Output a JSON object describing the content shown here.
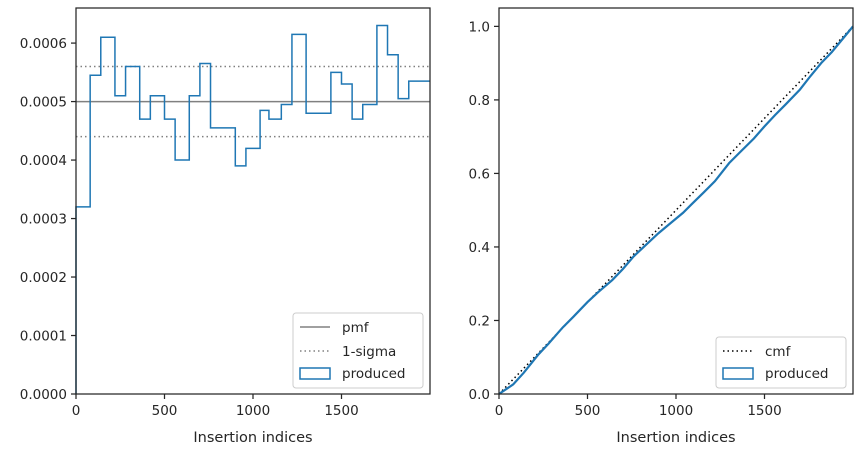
{
  "chart_data": [
    {
      "type": "step",
      "xlabel": "Insertion indices",
      "ylabel": "",
      "xlim": [
        0,
        2000
      ],
      "ylim": [
        0,
        0.00066
      ],
      "xticks": [
        0,
        500,
        1000,
        1500
      ],
      "xtick_labels": [
        "0",
        "500",
        "1000",
        "1500"
      ],
      "yticks": [
        0,
        0.0001,
        0.0002,
        0.0003,
        0.0004,
        0.0005,
        0.0006
      ],
      "ytick_labels": [
        "0.0000",
        "0.0001",
        "0.0002",
        "0.0003",
        "0.0004",
        "0.0005",
        "0.0006"
      ],
      "legend_position": "lower-right",
      "reference_lines": [
        {
          "name": "pmf",
          "y": 0.0005,
          "style": "solid",
          "color": "#808080"
        },
        {
          "name": "1-sigma",
          "y": 0.00056,
          "style": "dotted",
          "color": "#808080"
        },
        {
          "name": "",
          "y": 0.00044,
          "style": "dotted",
          "color": "#808080"
        }
      ],
      "series": [
        {
          "name": "produced",
          "color": "#1f77b4",
          "bin_edges": [
            0,
            80,
            140,
            220,
            280,
            360,
            420,
            500,
            560,
            640,
            700,
            760,
            820,
            900,
            960,
            1040,
            1090,
            1160,
            1220,
            1300,
            1360,
            1440,
            1500,
            1560,
            1620,
            1700,
            1760,
            1820,
            1880,
            1940,
            2000
          ],
          "values": [
            0.00032,
            0.000545,
            0.00061,
            0.00051,
            0.00056,
            0.00047,
            0.00051,
            0.00047,
            0.0004,
            0.00051,
            0.000565,
            0.000455,
            0.000455,
            0.00039,
            0.00042,
            0.000485,
            0.00047,
            0.000495,
            0.000615,
            0.00048,
            0.00048,
            0.00055,
            0.00053,
            0.00047,
            0.000495,
            0.00063,
            0.00058,
            0.000505,
            0.000535,
            0.000535
          ]
        }
      ]
    },
    {
      "type": "line",
      "xlabel": "Insertion indices",
      "ylabel": "",
      "xlim": [
        0,
        2000
      ],
      "ylim": [
        0,
        1.05
      ],
      "xticks": [
        0,
        500,
        1000,
        1500
      ],
      "xtick_labels": [
        "0",
        "500",
        "1000",
        "1500"
      ],
      "yticks": [
        0,
        0.2,
        0.4,
        0.6,
        0.8,
        1.0
      ],
      "ytick_labels": [
        "0.0",
        "0.2",
        "0.4",
        "0.6",
        "0.8",
        "1.0"
      ],
      "legend_position": "lower-right",
      "series": [
        {
          "name": "cmf",
          "style": "dotted",
          "color": "#000000",
          "x": [
            0,
            2000
          ],
          "y": [
            0,
            1.0
          ]
        },
        {
          "name": "produced",
          "style": "solid",
          "color": "#1f77b4",
          "x": [
            0,
            40,
            80,
            140,
            220,
            280,
            360,
            420,
            500,
            560,
            640,
            700,
            760,
            820,
            900,
            960,
            1040,
            1090,
            1160,
            1220,
            1300,
            1360,
            1440,
            1500,
            1560,
            1620,
            1700,
            1760,
            1820,
            1880,
            1940,
            2000
          ],
          "y": [
            0,
            0.013,
            0.026,
            0.058,
            0.106,
            0.137,
            0.181,
            0.21,
            0.25,
            0.277,
            0.31,
            0.34,
            0.374,
            0.401,
            0.437,
            0.461,
            0.493,
            0.517,
            0.55,
            0.579,
            0.628,
            0.657,
            0.695,
            0.728,
            0.759,
            0.788,
            0.828,
            0.865,
            0.9,
            0.93,
            0.965,
            1.0
          ]
        }
      ]
    }
  ]
}
